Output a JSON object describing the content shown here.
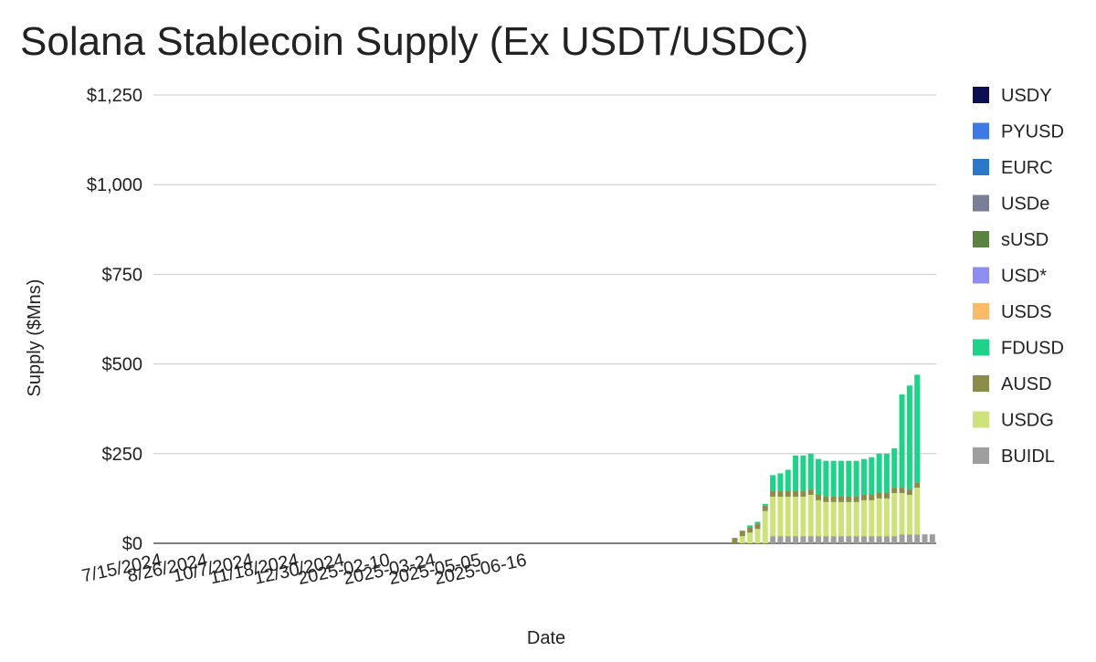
{
  "chart_data": {
    "type": "bar",
    "stacked": true,
    "title": "Solana Stablecoin Supply (Ex USDT/USDC)",
    "xlabel": "Date",
    "ylabel": "Supply ($Mns)",
    "ylim": [
      0,
      1250
    ],
    "y_ticks": [
      {
        "value": 0,
        "label": "$0"
      },
      {
        "value": 250,
        "label": "$250"
      },
      {
        "value": 500,
        "label": "$500"
      },
      {
        "value": 750,
        "label": "$750"
      },
      {
        "value": 1000,
        "label": "$1,000"
      },
      {
        "value": 1250,
        "label": "$1,250"
      }
    ],
    "x_tick_labels": [
      {
        "index": 0,
        "label": "7/15/2024"
      },
      {
        "index": 6,
        "label": "8/26/2024"
      },
      {
        "index": 12,
        "label": "10/7/2024"
      },
      {
        "index": 18,
        "label": "11/18/2024"
      },
      {
        "index": 24,
        "label": "12/30/2024"
      },
      {
        "index": 30,
        "label": "2025-02-10"
      },
      {
        "index": 36,
        "label": "2025-03-24"
      },
      {
        "index": 42,
        "label": "2025-05-05"
      },
      {
        "index": 48,
        "label": "2025-06-16"
      }
    ],
    "grid": true,
    "legend_position": "right",
    "series": [
      {
        "name": "BUIDL",
        "color": "#9e9e9e",
        "values": [
          0,
          0,
          0,
          0,
          0,
          0,
          0,
          0,
          0,
          0,
          0,
          0,
          0,
          0,
          0,
          0,
          0,
          0,
          0,
          0,
          0,
          0,
          0,
          0,
          0,
          0,
          0,
          0,
          0,
          0,
          0,
          0,
          0,
          0,
          0,
          0,
          0,
          0,
          0,
          0,
          0,
          0,
          0,
          0,
          0,
          0,
          0,
          0,
          0,
          0,
          0,
          0,
          0,
          0,
          0,
          0,
          0,
          0,
          0,
          0,
          0,
          0,
          0,
          0,
          0,
          0,
          0,
          0,
          0,
          0,
          0,
          0,
          0,
          0,
          0,
          0,
          0,
          0,
          0,
          0,
          0,
          20,
          20,
          20,
          20,
          20,
          20,
          20,
          20,
          20,
          20,
          20,
          20,
          20,
          20,
          20,
          20,
          20,
          25,
          25,
          25,
          25,
          25
        ]
      },
      {
        "name": "USDG",
        "color": "#cde27a",
        "values": [
          0,
          0,
          0,
          0,
          0,
          0,
          0,
          0,
          0,
          0,
          0,
          0,
          0,
          0,
          0,
          0,
          0,
          0,
          0,
          0,
          0,
          0,
          0,
          0,
          0,
          0,
          0,
          0,
          0,
          0,
          0,
          0,
          0,
          0,
          0,
          0,
          0,
          0,
          0,
          0,
          0,
          0,
          0,
          0,
          0,
          0,
          0,
          0,
          0,
          0,
          0,
          0,
          0,
          0,
          0,
          0,
          0,
          0,
          0,
          0,
          0,
          0,
          0,
          0,
          0,
          0,
          0,
          0,
          0,
          0,
          0,
          0,
          0,
          0,
          0,
          0,
          0,
          20,
          30,
          40,
          90,
          110,
          110,
          110,
          110,
          110,
          115,
          100,
          95,
          95,
          95,
          95,
          95,
          100,
          100,
          105,
          105,
          120,
          115,
          110,
          130
        ]
      },
      {
        "name": "AUSD",
        "color": "#8c8c4a",
        "values": [
          0,
          0,
          0,
          0,
          0,
          0,
          0,
          0,
          0,
          0,
          0,
          0,
          0,
          0,
          0,
          0,
          0,
          0,
          0,
          0,
          0,
          0,
          0,
          0,
          0,
          0,
          0,
          0,
          0,
          0,
          0,
          0,
          0,
          0,
          0,
          0,
          0,
          0,
          0,
          0,
          0,
          0,
          0,
          0,
          0,
          0,
          0,
          0,
          0,
          0,
          0,
          0,
          0,
          0,
          0,
          0,
          0,
          0,
          0,
          0,
          0,
          0,
          0,
          0,
          0,
          0,
          0,
          0,
          0,
          0,
          0,
          0,
          0,
          0,
          0,
          0,
          15,
          15,
          15,
          15,
          15,
          15,
          15,
          15,
          15,
          15,
          15,
          15,
          15,
          15,
          15,
          15,
          15,
          15,
          15,
          15,
          15,
          15,
          15,
          15,
          15
        ]
      },
      {
        "name": "FDUSD",
        "color": "#1ed28a",
        "values": [
          0,
          0,
          0,
          0,
          0,
          0,
          0,
          0,
          0,
          0,
          0,
          0,
          0,
          0,
          0,
          0,
          0,
          0,
          0,
          0,
          0,
          0,
          0,
          0,
          0,
          0,
          0,
          0,
          0,
          0,
          0,
          0,
          0,
          0,
          0,
          0,
          0,
          0,
          0,
          0,
          0,
          0,
          0,
          0,
          0,
          0,
          0,
          0,
          0,
          0,
          0,
          0,
          0,
          0,
          0,
          0,
          0,
          0,
          0,
          0,
          0,
          0,
          0,
          0,
          0,
          0,
          0,
          0,
          0,
          0,
          0,
          0,
          0,
          0,
          0,
          0,
          0,
          0,
          5,
          5,
          5,
          45,
          50,
          60,
          100,
          100,
          100,
          100,
          100,
          100,
          100,
          100,
          100,
          100,
          105,
          110,
          110,
          110,
          260,
          290,
          300
        ]
      },
      {
        "name": "USDS",
        "color": "#f7bb6a",
        "values": [
          0,
          0,
          0,
          0,
          0,
          0,
          0,
          0,
          0,
          0,
          0,
          0,
          0,
          0,
          0,
          0,
          0,
          0,
          0,
          0,
          0,
          0,
          0,
          0,
          0,
          0,
          0,
          0,
          0,
          0,
          0,
          0,
          0,
          0,
          0,
          0,
          0,
          0,
          0,
          0,
          0,
          0,
          0,
          0,
          0,
          0,
          0,
          0,
          0,
          0,
          0,
          0,
          0,
          0,
          0,
          0,
          0,
          0,
          0,
          0,
          0,
          0,
          0,
          0,
          0,
          0,
          0,
          0,
          0,
          0,
          0,
          0,
          0,
          0,
          0,
          0,
          0,
          0,
          0,
          0,
          0,
          0,
          0,
          0,
          0,
          0,
          0,
          0,
          0,
          0,
          0,
          0,
          0,
          0,
          0,
          0,
          0,
          0,
          0,
          0,
          0
        ]
      },
      {
        "name": "USD*",
        "color": "#8e8ef2",
        "values": [
          0,
          0,
          0,
          0,
          0,
          0,
          0,
          0,
          0,
          0,
          0,
          0,
          0,
          0,
          0,
          0,
          0,
          0,
          0,
          0,
          0,
          0,
          0,
          0,
          0,
          0,
          0,
          0,
          0,
          0,
          0,
          0,
          0,
          0,
          0,
          0,
          0,
          0,
          0,
          0,
          0,
          0,
          0,
          0,
          0,
          0,
          0,
          0,
          0,
          0,
          0,
          0,
          0,
          0,
          0,
          0,
          0,
          0,
          0,
          0,
          0,
          0,
          0,
          0,
          0,
          0,
          0,
          0,
          0,
          0,
          0,
          0,
          0,
          0,
          0,
          0,
          0,
          0,
          0,
          0,
          0,
          0,
          0,
          0,
          0,
          0,
          0,
          0,
          0,
          0,
          0,
          0,
          0,
          0,
          0,
          0,
          0,
          0,
          0,
          0,
          0
        ]
      },
      {
        "name": "sUSD",
        "color": "#5b8240",
        "values": [
          0,
          0,
          0,
          0,
          0,
          0,
          0,
          0,
          0,
          0,
          0,
          0,
          0,
          0,
          0,
          0,
          0,
          0,
          0,
          0,
          0,
          0,
          0,
          0,
          0,
          0,
          0,
          0,
          0,
          0,
          0,
          0,
          0,
          0,
          0,
          0,
          0,
          0,
          0,
          0,
          0,
          0,
          0,
          0,
          0,
          0,
          0,
          0,
          0,
          0,
          0,
          0,
          0,
          0,
          0,
          0,
          0,
          0,
          0,
          0,
          0,
          0,
          0,
          0,
          0,
          0,
          0,
          0,
          0,
          0,
          0,
          0,
          0,
          0,
          0,
          0,
          0,
          0,
          0,
          0,
          0,
          0,
          0,
          0,
          0,
          0,
          0,
          0,
          0,
          0,
          0,
          0,
          0,
          0,
          0,
          0,
          0,
          0,
          0,
          0,
          0
        ]
      },
      {
        "name": "USDe",
        "color": "#7a7f95",
        "values": [
          0,
          0,
          0,
          0,
          0,
          0,
          0,
          0,
          0,
          0,
          0,
          0,
          0,
          0,
          0,
          0,
          0,
          0,
          0,
          0,
          0,
          0,
          0,
          0,
          0,
          0,
          0,
          0,
          0,
          0,
          0,
          0,
          0,
          0,
          0,
          0,
          0,
          0,
          0,
          0,
          0,
          0,
          0,
          0,
          0,
          0,
          0,
          0,
          0,
          0,
          0,
          0,
          0,
          0,
          0,
          0,
          0,
          0,
          0,
          0,
          0,
          0,
          0,
          0,
          0,
          0,
          0,
          0,
          0,
          0,
          0,
          0,
          0,
          0,
          0,
          0,
          0,
          0,
          0,
          0,
          0,
          0,
          0,
          0,
          0,
          0,
          0,
          0,
          0,
          0,
          0,
          0,
          0,
          0,
          0,
          0,
          0,
          0,
          0,
          0,
          0
        ]
      },
      {
        "name": "EURC",
        "color": "#2b78c9",
        "values": [
          0,
          0,
          0,
          0,
          0,
          0,
          0,
          0,
          0,
          0,
          0,
          0,
          0,
          0,
          0,
          0,
          0,
          0,
          0,
          0,
          0,
          0,
          0,
          0,
          0,
          0,
          0,
          0,
          0,
          0,
          0,
          0,
          0,
          0,
          0,
          0,
          0,
          0,
          0,
          0,
          0,
          0,
          0,
          0,
          0,
          0,
          0,
          0,
          0,
          0,
          0,
          0,
          0,
          0,
          0,
          0,
          0,
          0,
          0,
          0,
          0,
          0,
          0,
          0,
          0,
          0,
          0,
          0,
          0,
          0,
          0,
          0,
          0,
          0,
          0,
          0,
          0,
          0,
          0,
          0,
          0,
          0,
          0,
          0,
          0,
          0,
          0,
          0,
          0,
          0,
          0,
          0,
          0,
          0,
          0,
          0,
          0,
          0,
          0,
          0,
          0
        ]
      },
      {
        "name": "PYUSD",
        "color": "#3e7ae6",
        "values": [
          0,
          0,
          0,
          0,
          0,
          0,
          0,
          0,
          0,
          0,
          0,
          0,
          0,
          0,
          0,
          0,
          0,
          0,
          0,
          0,
          0,
          0,
          0,
          0,
          0,
          0,
          0,
          0,
          0,
          0,
          0,
          0,
          0,
          0,
          0,
          0,
          0,
          0,
          0,
          0,
          0,
          0,
          0,
          0,
          0,
          0,
          0,
          0,
          0,
          0,
          0,
          0,
          0,
          0,
          0,
          0,
          0,
          0,
          0,
          0,
          0,
          0,
          0,
          0,
          0,
          0,
          0,
          0,
          0,
          0,
          0,
          0,
          0,
          0,
          0,
          0,
          0,
          0,
          0,
          0,
          0,
          0,
          0,
          0,
          0,
          0,
          0,
          0,
          0,
          0,
          0,
          0,
          0,
          0,
          0,
          0,
          0,
          0,
          0,
          0,
          0
        ]
      },
      {
        "name": "USDY",
        "color": "#0c0f52",
        "values": [
          0,
          0,
          0,
          0,
          0,
          0,
          0,
          0,
          0,
          0,
          0,
          0,
          0,
          0,
          0,
          0,
          0,
          0,
          0,
          0,
          0,
          0,
          0,
          0,
          0,
          0,
          0,
          0,
          0,
          0,
          0,
          0,
          0,
          0,
          0,
          0,
          0,
          0,
          0,
          0,
          0,
          0,
          0,
          0,
          0,
          0,
          0,
          0,
          0,
          0,
          0,
          0,
          0,
          0,
          0,
          0,
          0,
          0,
          0,
          0,
          0,
          0,
          0,
          0,
          0,
          0,
          0,
          0,
          0,
          0,
          0,
          0,
          0,
          0,
          0,
          0,
          0,
          0,
          0,
          0,
          0,
          0,
          0,
          0,
          0,
          0,
          0,
          0,
          0,
          0,
          0,
          0,
          0,
          0,
          0,
          0,
          0,
          0,
          0,
          0,
          0
        ]
      }
    ],
    "legend_order": [
      "USDY",
      "PYUSD",
      "EURC",
      "USDe",
      "sUSD",
      "USD*",
      "USDS",
      "FDUSD",
      "AUSD",
      "USDG",
      "BUIDL"
    ]
  }
}
